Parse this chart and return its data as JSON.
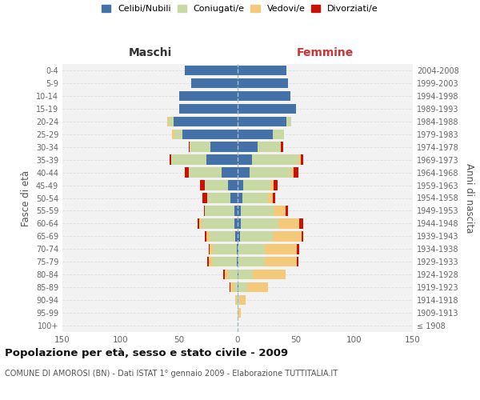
{
  "age_groups": [
    "100+",
    "95-99",
    "90-94",
    "85-89",
    "80-84",
    "75-79",
    "70-74",
    "65-69",
    "60-64",
    "55-59",
    "50-54",
    "45-49",
    "40-44",
    "35-39",
    "30-34",
    "25-29",
    "20-24",
    "15-19",
    "10-14",
    "5-9",
    "0-4"
  ],
  "birth_years": [
    "≤ 1908",
    "1909-1913",
    "1914-1918",
    "1919-1923",
    "1924-1928",
    "1929-1933",
    "1934-1938",
    "1939-1943",
    "1944-1948",
    "1949-1953",
    "1954-1958",
    "1959-1963",
    "1964-1968",
    "1969-1973",
    "1974-1978",
    "1979-1983",
    "1984-1988",
    "1989-1993",
    "1994-1998",
    "1999-2003",
    "2004-2008"
  ],
  "maschi": {
    "celibi": [
      0,
      0,
      0,
      0,
      0,
      1,
      1,
      2,
      3,
      3,
      6,
      8,
      14,
      27,
      23,
      47,
      55,
      50,
      50,
      40,
      45
    ],
    "coniugati": [
      0,
      0,
      1,
      3,
      8,
      20,
      20,
      22,
      28,
      25,
      20,
      20,
      28,
      30,
      18,
      7,
      4,
      0,
      0,
      0,
      0
    ],
    "vedovi": [
      0,
      0,
      1,
      3,
      3,
      4,
      3,
      3,
      2,
      0,
      0,
      0,
      0,
      0,
      0,
      2,
      1,
      0,
      0,
      0,
      0
    ],
    "divorziati": [
      0,
      0,
      0,
      1,
      1,
      1,
      1,
      1,
      1,
      1,
      4,
      4,
      3,
      1,
      1,
      0,
      0,
      0,
      0,
      0,
      0
    ]
  },
  "femmine": {
    "nubili": [
      0,
      0,
      0,
      1,
      1,
      1,
      1,
      2,
      3,
      3,
      4,
      5,
      10,
      12,
      17,
      30,
      42,
      50,
      45,
      43,
      42
    ],
    "coniugate": [
      0,
      0,
      2,
      7,
      12,
      22,
      22,
      28,
      32,
      28,
      22,
      23,
      36,
      40,
      20,
      10,
      4,
      0,
      0,
      0,
      0
    ],
    "vedove": [
      0,
      3,
      5,
      18,
      28,
      28,
      28,
      25,
      18,
      10,
      4,
      3,
      2,
      2,
      0,
      0,
      0,
      0,
      0,
      0,
      0
    ],
    "divorziate": [
      0,
      0,
      0,
      0,
      0,
      1,
      2,
      1,
      3,
      2,
      2,
      3,
      4,
      2,
      2,
      0,
      0,
      0,
      0,
      0,
      0
    ]
  },
  "colors": {
    "celibi": "#4472a8",
    "coniugati": "#c8d9a4",
    "vedovi": "#f5c97a",
    "divorziati": "#cc1100"
  },
  "legend_labels": [
    "Celibi/Nubili",
    "Coniugati/e",
    "Vedovi/e",
    "Divorziati/e"
  ],
  "xlim": 150,
  "title": "Popolazione per età, sesso e stato civile - 2009",
  "subtitle": "COMUNE DI AMOROSI (BN) - Dati ISTAT 1° gennaio 2009 - Elaborazione TUTTITALIA.IT",
  "ylabel_left": "Fasce di età",
  "ylabel_right": "Anni di nascita",
  "xlabel_maschi": "Maschi",
  "xlabel_femmine": "Femmine",
  "bg_color": "#ffffff",
  "plot_bg": "#f2f2f2",
  "grid_color": "#dddddd"
}
